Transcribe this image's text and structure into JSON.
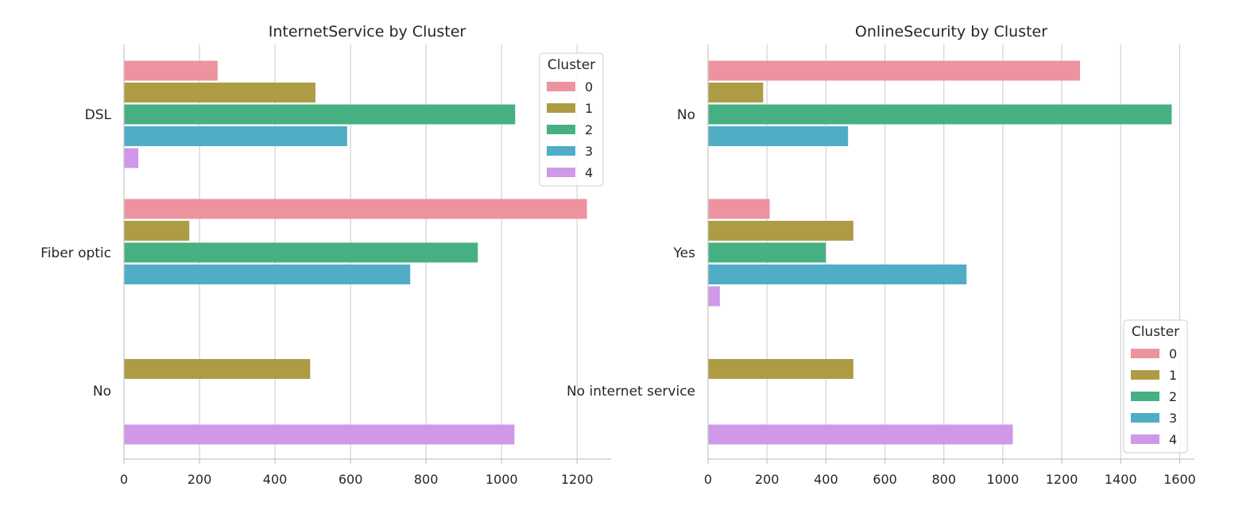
{
  "chart_data": [
    {
      "type": "bar",
      "orientation": "horizontal",
      "title": "InternetService by Cluster",
      "xlabel": "",
      "ylabel": "",
      "categories": [
        "DSL",
        "Fiber optic",
        "No"
      ],
      "xlim": [
        0,
        1290
      ],
      "xticks": [
        0,
        200,
        400,
        600,
        800,
        1000,
        1200
      ],
      "grid": "vertical",
      "legend": {
        "title": "Cluster",
        "position": "top-right"
      },
      "series": [
        {
          "name": "0",
          "color": "#ec939f",
          "values": [
            248,
            1226,
            0
          ]
        },
        {
          "name": "1",
          "color": "#ad9c44",
          "values": [
            507,
            173,
            493
          ]
        },
        {
          "name": "2",
          "color": "#47b082",
          "values": [
            1036,
            937,
            0
          ]
        },
        {
          "name": "3",
          "color": "#4faec6",
          "values": [
            591,
            758,
            0
          ]
        },
        {
          "name": "4",
          "color": "#cf98e8",
          "values": [
            38,
            0,
            1034
          ]
        }
      ]
    },
    {
      "type": "bar",
      "orientation": "horizontal",
      "title": "OnlineSecurity by Cluster",
      "xlabel": "",
      "ylabel": "",
      "categories": [
        "No",
        "Yes",
        "No internet service"
      ],
      "xlim": [
        0,
        1650
      ],
      "xticks": [
        0,
        200,
        400,
        600,
        800,
        1000,
        1200,
        1400,
        1600
      ],
      "grid": "vertical",
      "legend": {
        "title": "Cluster",
        "position": "bottom-right"
      },
      "series": [
        {
          "name": "0",
          "color": "#ec939f",
          "values": [
            1262,
            209,
            0
          ]
        },
        {
          "name": "1",
          "color": "#ad9c44",
          "values": [
            187,
            493,
            493
          ]
        },
        {
          "name": "2",
          "color": "#47b082",
          "values": [
            1573,
            399,
            0
          ]
        },
        {
          "name": "3",
          "color": "#4faec6",
          "values": [
            475,
            877,
            0
          ]
        },
        {
          "name": "4",
          "color": "#cf98e8",
          "values": [
            0,
            40,
            1034
          ]
        }
      ]
    }
  ]
}
